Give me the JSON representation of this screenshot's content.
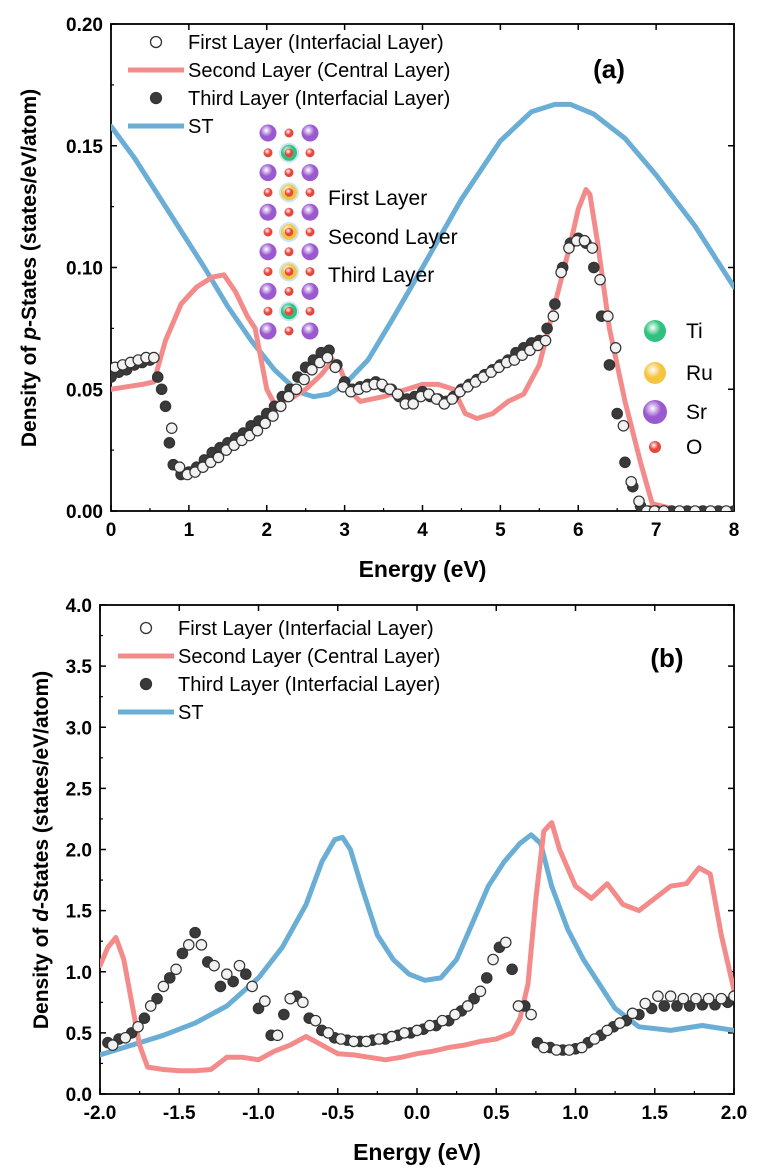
{
  "colors": {
    "second_layer": "#f48b8b",
    "st": "#6aaed6",
    "third_fill": "#3a3a3a",
    "first_fill": "#f2f2f2",
    "ti": "#2ec27e",
    "ru": "#f5c542",
    "sr": "#9b59d0",
    "o": "#e8453c"
  },
  "chart_data": [
    {
      "type": "line",
      "panel_label": "(a)",
      "xlabel": "Energy (eV)",
      "ylabel_pre": "Density of ",
      "ylabel_italic": "p",
      "ylabel_post": "-States (states/eV/atom)",
      "xlim": [
        0,
        8
      ],
      "ylim": [
        0,
        0.2
      ],
      "xticks": [
        0,
        1,
        2,
        3,
        4,
        5,
        6,
        7,
        8
      ],
      "xtick_labels": [
        "0",
        "1",
        "2",
        "3",
        "4",
        "5",
        "6",
        "7",
        "8"
      ],
      "yticks": [
        0,
        0.05,
        0.1,
        0.15,
        0.2
      ],
      "ytick_labels": [
        "0.00",
        "0.05",
        "0.10",
        "0.15",
        "0.20"
      ],
      "legend": [
        {
          "label": "First      Layer (Interfacial Layer)",
          "style": "open-circle"
        },
        {
          "label": "Second Layer (Central     Layer)",
          "style": "line",
          "series": "second"
        },
        {
          "label": "Third     Layer (Interfacial Layer)",
          "style": "filled-circle"
        },
        {
          "label": "ST",
          "style": "line",
          "series": "st"
        }
      ],
      "inset": {
        "layer_labels": [
          "First      Layer",
          "Second Layer",
          "Third     Layer"
        ],
        "atom_legend": [
          "Ti",
          "Ru",
          "Sr",
          "O"
        ]
      },
      "series": [
        {
          "name": "ST",
          "x": [
            0,
            0.3,
            0.6,
            0.9,
            1.2,
            1.5,
            1.8,
            2.1,
            2.4,
            2.6,
            2.8,
            3.0,
            3.3,
            3.6,
            4.0,
            4.5,
            5.0,
            5.4,
            5.7,
            5.9,
            6.2,
            6.6,
            7.0,
            7.5,
            8.0
          ],
          "y": [
            0.158,
            0.145,
            0.13,
            0.115,
            0.1,
            0.084,
            0.07,
            0.058,
            0.049,
            0.047,
            0.048,
            0.052,
            0.062,
            0.078,
            0.1,
            0.128,
            0.152,
            0.164,
            0.167,
            0.167,
            0.163,
            0.153,
            0.138,
            0.117,
            0.092
          ]
        },
        {
          "name": "Second Layer",
          "x": [
            0,
            0.2,
            0.4,
            0.55,
            0.7,
            0.9,
            1.1,
            1.3,
            1.45,
            1.6,
            1.75,
            1.85,
            2.0,
            2.1,
            2.3,
            2.5,
            2.7,
            2.85,
            2.95,
            3.05,
            3.2,
            3.5,
            3.8,
            4.0,
            4.2,
            4.4,
            4.55,
            4.7,
            4.9,
            5.1,
            5.3,
            5.5,
            5.7,
            5.9,
            6.0,
            6.1,
            6.15,
            6.25,
            6.4,
            6.6,
            6.8,
            6.95,
            7.2,
            8.0
          ],
          "y": [
            0.05,
            0.051,
            0.052,
            0.053,
            0.07,
            0.085,
            0.092,
            0.096,
            0.097,
            0.09,
            0.08,
            0.075,
            0.05,
            0.044,
            0.046,
            0.05,
            0.056,
            0.062,
            0.058,
            0.05,
            0.045,
            0.047,
            0.05,
            0.052,
            0.052,
            0.05,
            0.04,
            0.038,
            0.04,
            0.045,
            0.048,
            0.06,
            0.085,
            0.11,
            0.124,
            0.132,
            0.13,
            0.11,
            0.075,
            0.045,
            0.02,
            0.003,
            0.001,
            0.001
          ]
        },
        {
          "name": "Third Layer",
          "marker": "filled-circle",
          "x": [
            0,
            0.1,
            0.2,
            0.3,
            0.4,
            0.5,
            0.6,
            0.65,
            0.7,
            0.75,
            0.8,
            0.9,
            1.0,
            1.1,
            1.2,
            1.3,
            1.4,
            1.5,
            1.6,
            1.7,
            1.8,
            1.9,
            2.0,
            2.1,
            2.2,
            2.3,
            2.4,
            2.5,
            2.6,
            2.7,
            2.8,
            2.9,
            3.0,
            3.1,
            3.2,
            3.3,
            3.4,
            3.5,
            3.6,
            3.7,
            3.8,
            3.9,
            4.0,
            4.1,
            4.2,
            4.3,
            4.4,
            4.5,
            4.6,
            4.7,
            4.8,
            4.9,
            5.0,
            5.1,
            5.2,
            5.3,
            5.4,
            5.5,
            5.6,
            5.7,
            5.8,
            5.9,
            6.0,
            6.1,
            6.2,
            6.3,
            6.4,
            6.5,
            6.6,
            6.7,
            6.8,
            6.9,
            7.0,
            7.2,
            7.4,
            7.6,
            7.8,
            8.0
          ],
          "y": [
            0.055,
            0.057,
            0.058,
            0.06,
            0.061,
            0.062,
            0.055,
            0.05,
            0.043,
            0.028,
            0.019,
            0.015,
            0.016,
            0.018,
            0.021,
            0.024,
            0.026,
            0.028,
            0.03,
            0.032,
            0.035,
            0.037,
            0.04,
            0.043,
            0.047,
            0.05,
            0.055,
            0.059,
            0.062,
            0.065,
            0.066,
            0.06,
            0.053,
            0.05,
            0.051,
            0.052,
            0.053,
            0.051,
            0.05,
            0.047,
            0.046,
            0.047,
            0.049,
            0.047,
            0.046,
            0.045,
            0.047,
            0.05,
            0.052,
            0.054,
            0.056,
            0.058,
            0.06,
            0.062,
            0.065,
            0.067,
            0.069,
            0.07,
            0.075,
            0.085,
            0.1,
            0.11,
            0.112,
            0.11,
            0.1,
            0.08,
            0.06,
            0.04,
            0.02,
            0.01,
            0.002,
            0.0,
            0.0,
            0.0,
            0.0,
            0.0,
            0.0,
            0.0
          ]
        },
        {
          "name": "First Layer",
          "marker": "open-circle",
          "x": [
            0.05,
            0.15,
            0.25,
            0.35,
            0.45,
            0.55,
            0.78,
            0.88,
            0.98,
            1.08,
            1.18,
            1.28,
            1.38,
            1.48,
            1.58,
            1.68,
            1.78,
            1.88,
            1.98,
            2.08,
            2.18,
            2.28,
            2.38,
            2.48,
            2.58,
            2.68,
            2.78,
            2.88,
            2.98,
            3.08,
            3.18,
            3.28,
            3.38,
            3.48,
            3.58,
            3.68,
            3.78,
            3.88,
            3.98,
            4.08,
            4.18,
            4.28,
            4.38,
            4.48,
            4.58,
            4.68,
            4.78,
            4.88,
            4.98,
            5.08,
            5.18,
            5.28,
            5.38,
            5.48,
            5.58,
            5.68,
            5.78,
            5.88,
            5.98,
            6.08,
            6.18,
            6.28,
            6.38,
            6.48,
            6.58,
            6.68,
            6.78,
            6.88,
            6.98,
            7.1,
            7.3,
            7.5,
            7.7,
            7.9
          ],
          "y": [
            0.059,
            0.06,
            0.061,
            0.062,
            0.063,
            0.063,
            0.034,
            0.018,
            0.015,
            0.016,
            0.018,
            0.02,
            0.022,
            0.025,
            0.027,
            0.029,
            0.031,
            0.033,
            0.036,
            0.039,
            0.043,
            0.047,
            0.05,
            0.054,
            0.058,
            0.061,
            0.063,
            0.059,
            0.051,
            0.049,
            0.05,
            0.051,
            0.052,
            0.052,
            0.05,
            0.048,
            0.044,
            0.044,
            0.047,
            0.048,
            0.046,
            0.044,
            0.046,
            0.049,
            0.051,
            0.053,
            0.055,
            0.057,
            0.059,
            0.061,
            0.062,
            0.064,
            0.066,
            0.068,
            0.07,
            0.08,
            0.098,
            0.108,
            0.111,
            0.111,
            0.108,
            0.095,
            0.08,
            0.067,
            0.035,
            0.012,
            0.004,
            0.0,
            0.0,
            0.0,
            0.0,
            0.0,
            0.0,
            0.0
          ]
        }
      ]
    },
    {
      "type": "line",
      "panel_label": "(b)",
      "xlabel": "Energy (eV)",
      "ylabel_pre": "Density of ",
      "ylabel_italic": "d",
      "ylabel_post": "-States (states/eV/atom)",
      "xlim": [
        -2,
        2
      ],
      "ylim": [
        0,
        4
      ],
      "xticks": [
        -2,
        -1.5,
        -1,
        -0.5,
        0,
        0.5,
        1,
        1.5,
        2
      ],
      "xtick_labels": [
        "-2.0",
        "-1.5",
        "-1.0",
        "-0.5",
        "0.0",
        "0.5",
        "1.0",
        "1.5",
        "2.0"
      ],
      "yticks": [
        0,
        0.5,
        1,
        1.5,
        2,
        2.5,
        3,
        3.5,
        4
      ],
      "ytick_labels": [
        "0.0",
        "0.5",
        "1.0",
        "1.5",
        "2.0",
        "2.5",
        "3.0",
        "3.5",
        "4.0"
      ],
      "legend": [
        {
          "label": "First      Layer (Interfacial Layer)",
          "style": "open-circle"
        },
        {
          "label": "Second Layer (Central     Layer)",
          "style": "line",
          "series": "second"
        },
        {
          "label": "Third     Layer (Interfacial Layer)",
          "style": "filled-circle"
        },
        {
          "label": "ST",
          "style": "line",
          "series": "st"
        }
      ],
      "series": [
        {
          "name": "ST",
          "x": [
            -2.0,
            -1.8,
            -1.6,
            -1.4,
            -1.2,
            -1.0,
            -0.85,
            -0.7,
            -0.6,
            -0.52,
            -0.47,
            -0.42,
            -0.35,
            -0.25,
            -0.15,
            -0.05,
            0.05,
            0.15,
            0.25,
            0.35,
            0.45,
            0.55,
            0.65,
            0.72,
            0.78,
            0.85,
            0.95,
            1.05,
            1.15,
            1.25,
            1.4,
            1.6,
            1.8,
            2.0
          ],
          "y": [
            0.32,
            0.4,
            0.48,
            0.58,
            0.72,
            0.95,
            1.2,
            1.55,
            1.9,
            2.08,
            2.1,
            2.0,
            1.7,
            1.3,
            1.1,
            0.98,
            0.93,
            0.95,
            1.1,
            1.4,
            1.7,
            1.9,
            2.05,
            2.12,
            2.05,
            1.7,
            1.35,
            1.1,
            0.9,
            0.7,
            0.55,
            0.52,
            0.56,
            0.52
          ]
        },
        {
          "name": "Second Layer",
          "x": [
            -2.0,
            -1.95,
            -1.9,
            -1.85,
            -1.8,
            -1.75,
            -1.7,
            -1.6,
            -1.5,
            -1.4,
            -1.3,
            -1.2,
            -1.1,
            -1.0,
            -0.9,
            -0.8,
            -0.7,
            -0.6,
            -0.5,
            -0.4,
            -0.3,
            -0.2,
            -0.1,
            0.0,
            0.1,
            0.2,
            0.3,
            0.4,
            0.5,
            0.6,
            0.65,
            0.7,
            0.75,
            0.8,
            0.85,
            0.9,
            1.0,
            1.1,
            1.2,
            1.3,
            1.4,
            1.5,
            1.6,
            1.7,
            1.78,
            1.85,
            1.92,
            2.0
          ],
          "y": [
            1.05,
            1.2,
            1.28,
            1.1,
            0.75,
            0.4,
            0.22,
            0.2,
            0.19,
            0.19,
            0.2,
            0.3,
            0.3,
            0.28,
            0.35,
            0.4,
            0.47,
            0.4,
            0.33,
            0.32,
            0.3,
            0.28,
            0.3,
            0.33,
            0.35,
            0.38,
            0.4,
            0.43,
            0.45,
            0.5,
            0.62,
            0.9,
            1.6,
            2.15,
            2.22,
            2.0,
            1.7,
            1.6,
            1.72,
            1.55,
            1.5,
            1.6,
            1.7,
            1.72,
            1.85,
            1.8,
            1.3,
            0.85
          ]
        },
        {
          "name": "Third Layer",
          "marker": "filled-circle",
          "x": [
            -1.95,
            -1.88,
            -1.8,
            -1.72,
            -1.64,
            -1.56,
            -1.48,
            -1.4,
            -1.32,
            -1.24,
            -1.16,
            -1.08,
            -1.0,
            -0.92,
            -0.84,
            -0.76,
            -0.68,
            -0.6,
            -0.52,
            -0.44,
            -0.36,
            -0.28,
            -0.2,
            -0.12,
            -0.04,
            0.04,
            0.12,
            0.2,
            0.28,
            0.36,
            0.44,
            0.52,
            0.6,
            0.68,
            0.76,
            0.84,
            0.92,
            1.0,
            1.08,
            1.16,
            1.24,
            1.32,
            1.4,
            1.48,
            1.56,
            1.64,
            1.72,
            1.8,
            1.88,
            1.96
          ],
          "y": [
            0.42,
            0.45,
            0.5,
            0.62,
            0.78,
            0.95,
            1.15,
            1.32,
            1.08,
            0.88,
            0.92,
            0.98,
            0.7,
            0.48,
            0.65,
            0.8,
            0.62,
            0.52,
            0.46,
            0.44,
            0.43,
            0.44,
            0.45,
            0.48,
            0.5,
            0.53,
            0.56,
            0.6,
            0.68,
            0.78,
            0.95,
            1.2,
            1.02,
            0.72,
            0.42,
            0.38,
            0.36,
            0.37,
            0.42,
            0.48,
            0.55,
            0.6,
            0.65,
            0.7,
            0.72,
            0.72,
            0.72,
            0.73,
            0.73,
            0.75
          ]
        },
        {
          "name": "First Layer",
          "marker": "open-circle",
          "x": [
            -1.92,
            -1.84,
            -1.76,
            -1.68,
            -1.6,
            -1.52,
            -1.44,
            -1.36,
            -1.28,
            -1.2,
            -1.12,
            -1.04,
            -0.96,
            -0.88,
            -0.8,
            -0.72,
            -0.64,
            -0.56,
            -0.48,
            -0.4,
            -0.32,
            -0.24,
            -0.16,
            -0.08,
            0.0,
            0.08,
            0.16,
            0.24,
            0.32,
            0.4,
            0.48,
            0.56,
            0.64,
            0.72,
            0.8,
            0.88,
            0.96,
            1.04,
            1.12,
            1.2,
            1.28,
            1.36,
            1.44,
            1.52,
            1.6,
            1.68,
            1.76,
            1.84,
            1.92,
            2.0
          ],
          "y": [
            0.4,
            0.46,
            0.55,
            0.72,
            0.88,
            1.02,
            1.22,
            1.22,
            1.05,
            0.98,
            1.05,
            0.88,
            0.76,
            0.48,
            0.78,
            0.75,
            0.6,
            0.5,
            0.45,
            0.43,
            0.43,
            0.45,
            0.47,
            0.5,
            0.52,
            0.56,
            0.6,
            0.65,
            0.72,
            0.84,
            1.1,
            1.24,
            0.72,
            0.65,
            0.38,
            0.36,
            0.36,
            0.38,
            0.45,
            0.52,
            0.58,
            0.66,
            0.74,
            0.8,
            0.8,
            0.78,
            0.78,
            0.78,
            0.78,
            0.8
          ]
        }
      ]
    }
  ]
}
